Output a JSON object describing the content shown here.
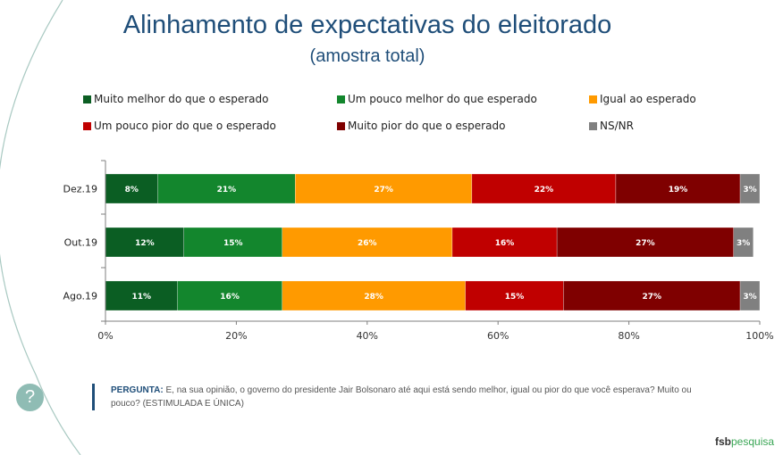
{
  "header": {
    "title": "Alinhamento de expectativas do eleitorado",
    "subtitle": "(amostra total)"
  },
  "legend": [
    {
      "label": "Muito melhor do que o esperado",
      "color": "#0b5e23"
    },
    {
      "label": "Um pouco melhor do que esperado",
      "color": "#13862d"
    },
    {
      "label": "Igual ao esperado",
      "color": "#ff9a00"
    },
    {
      "label": "Um pouco pior do que o esperado",
      "color": "#c00000"
    },
    {
      "label": "Muito pior do que o esperado",
      "color": "#7f0000"
    },
    {
      "label": "NS/NR",
      "color": "#808080"
    }
  ],
  "chart_data": {
    "type": "bar",
    "orientation": "horizontal",
    "stacked": true,
    "title": "Alinhamento de expectativas do eleitorado",
    "subtitle": "(amostra total)",
    "categories": [
      "Dez.19",
      "Out.19",
      "Ago.19"
    ],
    "series": [
      {
        "name": "Muito melhor do que o esperado",
        "color": "#0b5e23",
        "values": [
          8,
          12,
          11
        ]
      },
      {
        "name": "Um pouco melhor do que esperado",
        "color": "#13862d",
        "values": [
          21,
          15,
          16
        ]
      },
      {
        "name": "Igual ao esperado",
        "color": "#ff9a00",
        "values": [
          27,
          26,
          28
        ]
      },
      {
        "name": "Um pouco pior do que o esperado",
        "color": "#c00000",
        "values": [
          22,
          16,
          15
        ]
      },
      {
        "name": "Muito pior do que o esperado",
        "color": "#7f0000",
        "values": [
          19,
          27,
          27
        ]
      },
      {
        "name": "NS/NR",
        "color": "#808080",
        "values": [
          3,
          3,
          3
        ]
      }
    ],
    "xlim": [
      0,
      100
    ],
    "xticks": [
      "0%",
      "20%",
      "40%",
      "60%",
      "80%",
      "100%"
    ],
    "xtick_values": [
      0,
      20,
      40,
      60,
      80,
      100
    ],
    "xlabel": "",
    "ylabel": "",
    "grid": false,
    "legend_position": "top"
  },
  "question": {
    "label": "PERGUNTA:",
    "text": "E, na sua opinião, o governo do presidente Jair Bolsonaro até aqui está sendo melhor, igual ou pior do que você esperava? Muito ou pouco? (ESTIMULADA E ÚNICA)"
  },
  "help_icon": "?",
  "logo": {
    "bold": "fsb",
    "light": "pesquisa"
  }
}
